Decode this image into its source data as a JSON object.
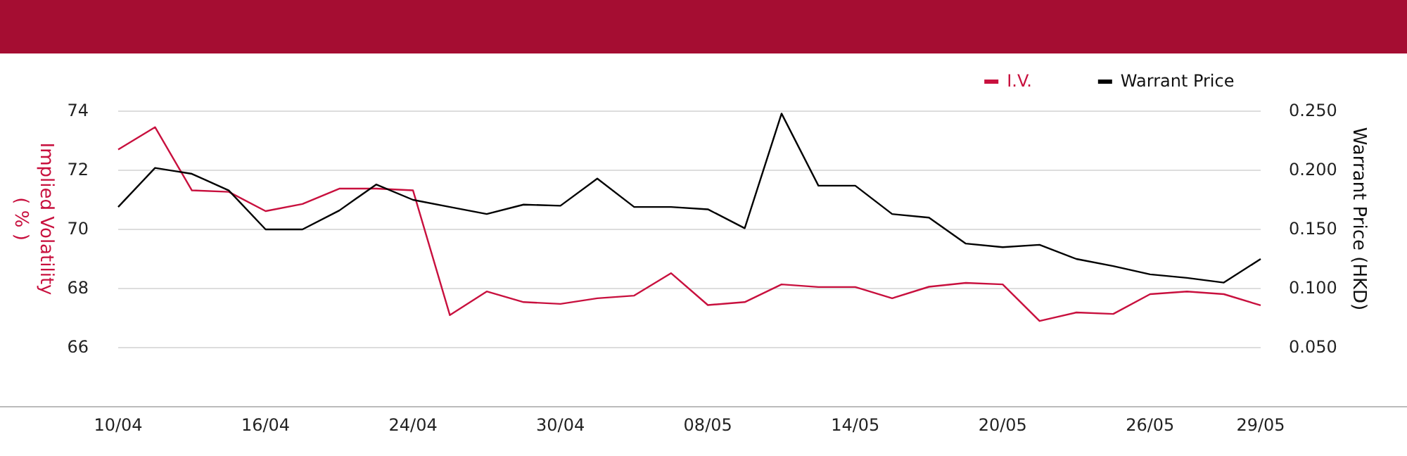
{
  "chart_data": {
    "type": "line",
    "ylabel": "Implied Volatility\n( % )",
    "y2label": "Warrant Price (HKD)",
    "categories": [
      "10/04",
      null,
      null,
      null,
      "16/04",
      null,
      null,
      null,
      "24/04",
      null,
      null,
      null,
      "30/04",
      null,
      null,
      null,
      "08/05",
      null,
      null,
      null,
      "14/05",
      null,
      null,
      null,
      "20/05",
      null,
      null,
      null,
      "26/05",
      null,
      null,
      "29/05"
    ],
    "series": [
      {
        "name": "I.V.",
        "color": "#c8103e",
        "values": [
          72.7,
          73.46,
          71.32,
          71.27,
          70.62,
          70.86,
          71.38,
          71.38,
          71.32,
          67.1,
          67.9,
          67.54,
          67.48,
          67.67,
          67.76,
          68.52,
          67.44,
          67.54,
          68.14,
          68.05,
          68.05,
          67.67,
          68.06,
          68.19,
          68.14,
          66.9,
          67.19,
          67.14,
          67.81,
          67.9,
          67.81,
          67.43
        ]
      },
      {
        "name": "Warrant Price",
        "color": "#000000",
        "axis": "y2",
        "values": [
          0.169,
          0.202,
          0.197,
          0.183,
          0.15,
          0.15,
          0.166,
          0.188,
          0.175,
          0.169,
          0.163,
          0.171,
          0.17,
          0.193,
          0.169,
          0.169,
          0.167,
          0.151,
          0.248,
          0.187,
          0.187,
          0.163,
          0.16,
          0.138,
          0.135,
          0.137,
          0.125,
          0.119,
          0.112,
          0.109,
          0.105,
          0.125
        ]
      }
    ],
    "ylim": [
      64,
      74
    ],
    "yticks": [
      66,
      68,
      70,
      72,
      74
    ],
    "y2lim": [
      0,
      0.25
    ],
    "y2ticks": [
      {
        "value": 0.05,
        "label": "0.050"
      },
      {
        "value": 0.1,
        "label": "0.100"
      },
      {
        "value": 0.15,
        "label": "0.150"
      },
      {
        "value": 0.2,
        "label": "0.200"
      },
      {
        "value": 0.25,
        "label": "0.250"
      }
    ],
    "grid": "y",
    "legend": "top right",
    "marker": "none",
    "line_style": "solid"
  }
}
